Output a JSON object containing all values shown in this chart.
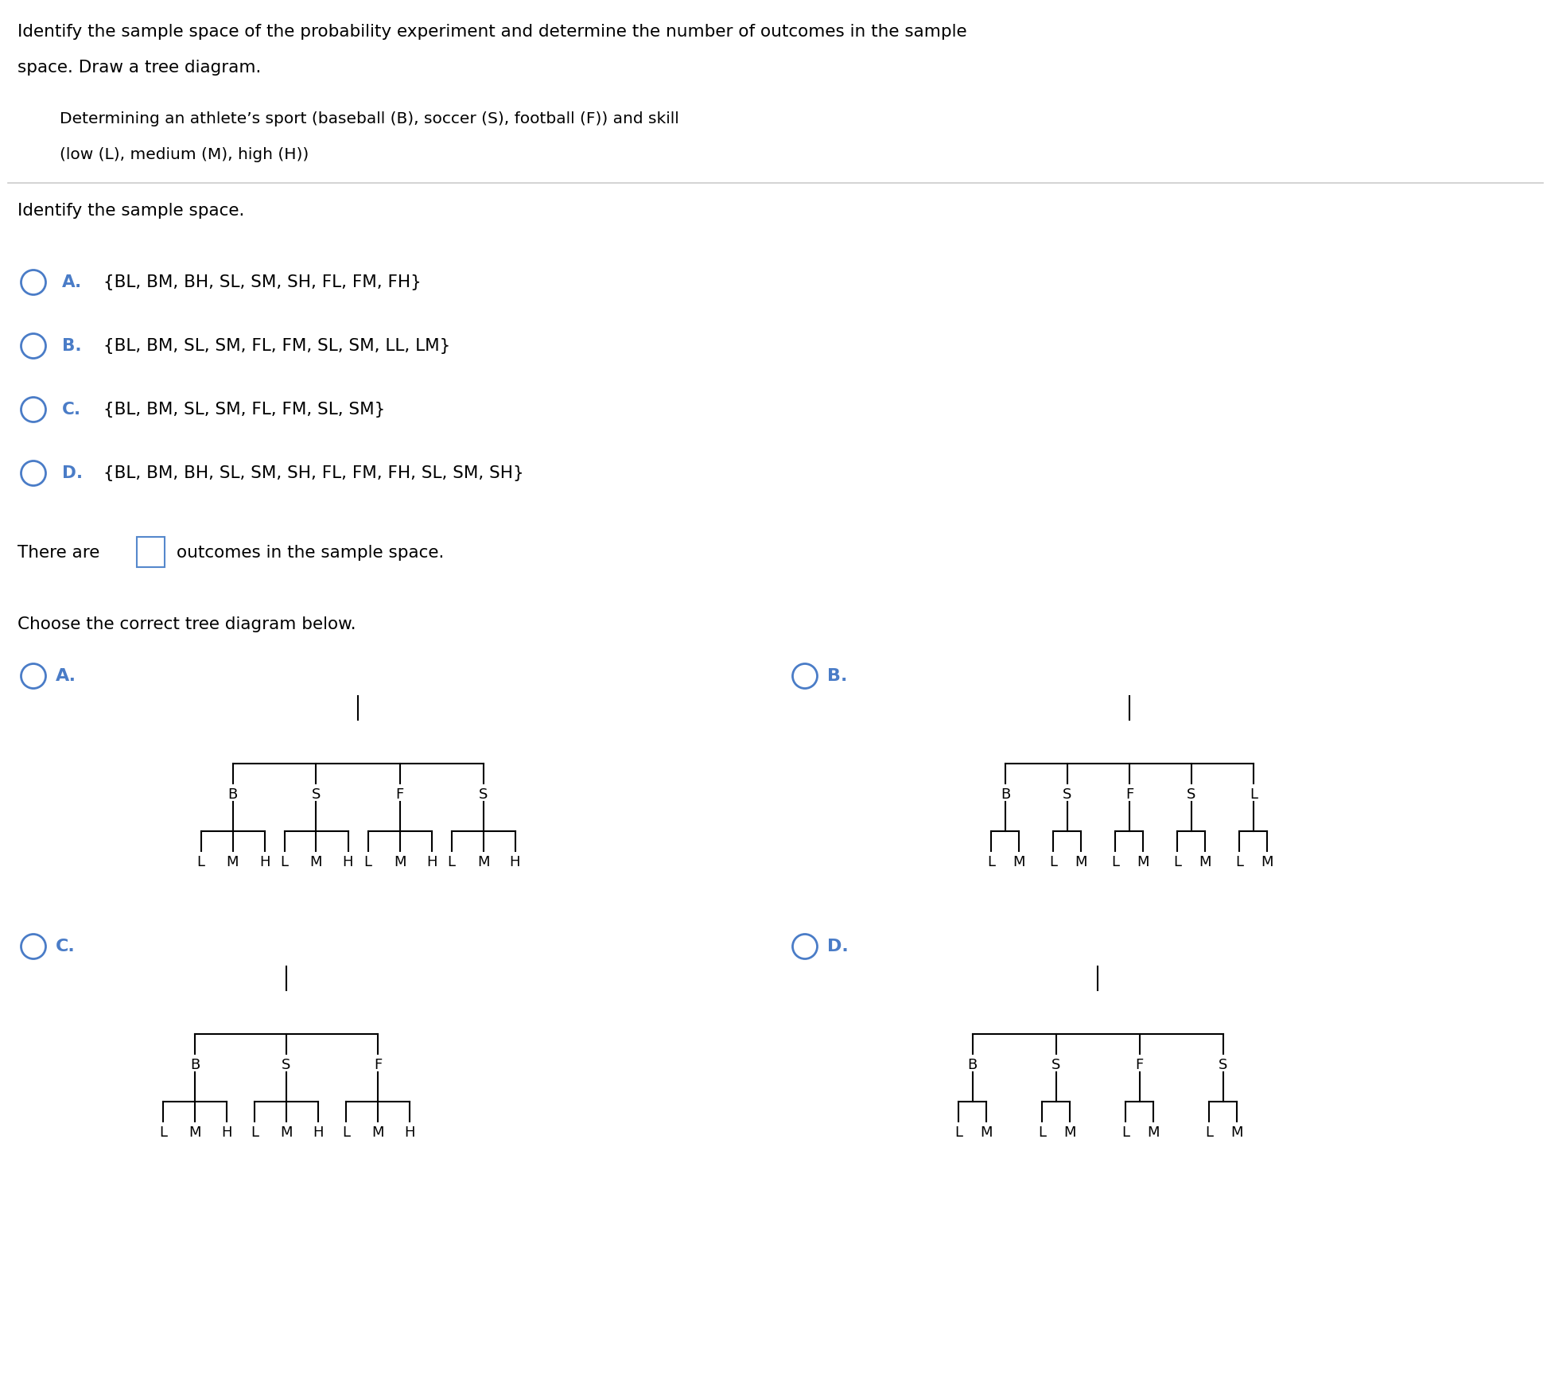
{
  "bg_color": "#ffffff",
  "title_line1": "Identify the sample space of the probability experiment and determine the number of outcomes in the sample",
  "title_line2": "space. Draw a tree diagram.",
  "subtitle_line1": "Determining an athlete’s sport (baseball (B), soccer (S), football (F)) and skill",
  "subtitle_line2": "(low (L), medium (M), high (H))",
  "section2_title": "Identify the sample space.",
  "options": [
    {
      "label": "A.",
      "text": "{BL, BM, BH, SL, SM, SH, FL, FM, FH}"
    },
    {
      "label": "B.",
      "text": "{BL, BM, SL, SM, FL, FM, SL, SM, LL, LM}"
    },
    {
      "label": "C.",
      "text": "{BL, BM, SL, SM, FL, FM, SL, SM}"
    },
    {
      "label": "D.",
      "text": "{BL, BM, BH, SL, SM, SH, FL, FM, FH, SL, SM, SH}"
    }
  ],
  "there_are_text": "There are",
  "outcomes_text": "outcomes in the sample space.",
  "choose_text": "Choose the correct tree diagram below.",
  "circle_color": "#4a7cc7",
  "label_color": "#4a7cc7",
  "text_color": "#000000",
  "separator_color": "#cccccc",
  "tree_diagrams": [
    {
      "label": "A.",
      "branches": [
        "B",
        "S",
        "F",
        "S"
      ],
      "n_children": 3,
      "child_labels": [
        "L",
        "M",
        "H"
      ]
    },
    {
      "label": "B.",
      "branches": [
        "B",
        "S",
        "F",
        "S",
        "L"
      ],
      "n_children": 2,
      "child_labels": [
        "L",
        "M"
      ]
    },
    {
      "label": "C.",
      "branches": [
        "B",
        "S",
        "F"
      ],
      "n_children": 3,
      "child_labels": [
        "L",
        "M",
        "H"
      ]
    },
    {
      "label": "D.",
      "branches": [
        "B",
        "S",
        "F",
        "S"
      ],
      "n_children": 2,
      "child_labels": [
        "L",
        "M"
      ]
    }
  ]
}
